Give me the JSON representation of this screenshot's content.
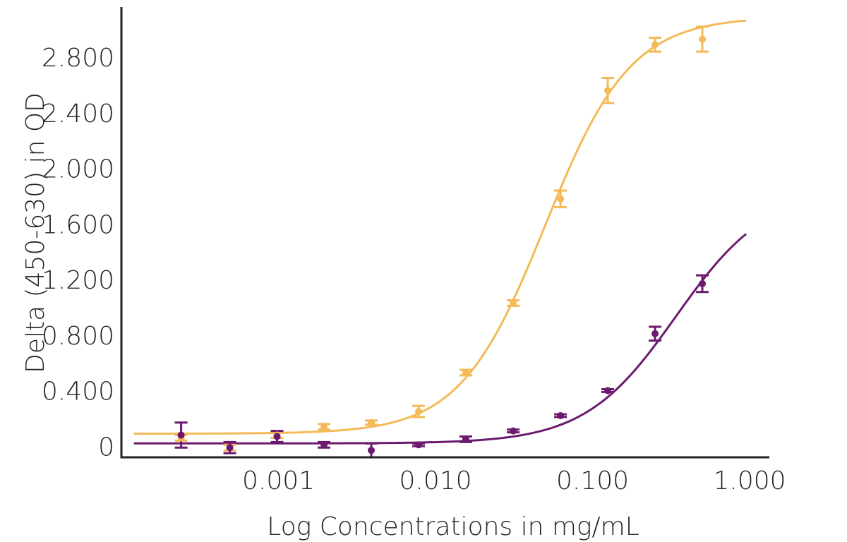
{
  "chart_data": {
    "type": "scatter",
    "title": "",
    "xlabel": "Log Concentrations in mg/mL",
    "ylabel": "Delta (450-630) in OD",
    "x_scale": "log",
    "xlim": [
      0.0001,
      1.0
    ],
    "ylim": [
      -0.08,
      3.12
    ],
    "x_ticks": [
      {
        "value": 0.001,
        "label": "0.001"
      },
      {
        "value": 0.01,
        "label": "0.010"
      },
      {
        "value": 0.1,
        "label": "0.100"
      },
      {
        "value": 1.0,
        "label": "1.000"
      }
    ],
    "y_ticks": [
      {
        "value": 0,
        "label": "0"
      },
      {
        "value": 0.4,
        "label": "0.400"
      },
      {
        "value": 0.8,
        "label": "0.800"
      },
      {
        "value": 1.2,
        "label": "1.200"
      },
      {
        "value": 1.6,
        "label": "1.600"
      },
      {
        "value": 2.0,
        "label": "2.000"
      },
      {
        "value": 2.4,
        "label": "2.400"
      },
      {
        "value": 2.8,
        "label": "2.800"
      }
    ],
    "grid": false,
    "legend": "none",
    "series": [
      {
        "color": "#F4BA57",
        "points": [
          {
            "x": 0.00024,
            "y": 0.06,
            "err": 0.02
          },
          {
            "x": 0.00049,
            "y": -0.01,
            "err": 0.02
          },
          {
            "x": 0.00098,
            "y": 0.08,
            "err": 0.02
          },
          {
            "x": 0.00195,
            "y": 0.14,
            "err": 0.02
          },
          {
            "x": 0.0039,
            "y": 0.17,
            "err": 0.015
          },
          {
            "x": 0.0078,
            "y": 0.25,
            "err": 0.04
          },
          {
            "x": 0.0156,
            "y": 0.53,
            "err": 0.02
          },
          {
            "x": 0.03125,
            "y": 1.03,
            "err": 0.02
          },
          {
            "x": 0.0625,
            "y": 1.78,
            "err": 0.06
          },
          {
            "x": 0.125,
            "y": 2.56,
            "err": 0.09
          },
          {
            "x": 0.25,
            "y": 2.89,
            "err": 0.05
          },
          {
            "x": 0.5,
            "y": 2.93,
            "err": 0.09
          }
        ],
        "curve": {
          "bottom": 0.09,
          "top": 3.09,
          "ec50": 0.05,
          "hill": 1.6
        }
      },
      {
        "color": "#6B1A6E",
        "points": [
          {
            "x": 0.00024,
            "y": 0.08,
            "err": 0.09
          },
          {
            "x": 0.00049,
            "y": -0.01,
            "err": 0.04
          },
          {
            "x": 0.00098,
            "y": 0.07,
            "err": 0.04
          },
          {
            "x": 0.00195,
            "y": 0.01,
            "err": 0.02
          },
          {
            "x": 0.0039,
            "y": -0.03,
            "err": 0.05
          },
          {
            "x": 0.0078,
            "y": 0.01,
            "err": 0.01
          },
          {
            "x": 0.0156,
            "y": 0.05,
            "err": 0.02
          },
          {
            "x": 0.03125,
            "y": 0.11,
            "err": 0.01
          },
          {
            "x": 0.0625,
            "y": 0.22,
            "err": 0.01
          },
          {
            "x": 0.125,
            "y": 0.4,
            "err": 0.01
          },
          {
            "x": 0.25,
            "y": 0.81,
            "err": 0.05
          },
          {
            "x": 0.5,
            "y": 1.17,
            "err": 0.06
          }
        ],
        "curve": {
          "bottom": 0.02,
          "top": 1.85,
          "ec50": 0.34,
          "hill": 1.5
        }
      }
    ]
  }
}
